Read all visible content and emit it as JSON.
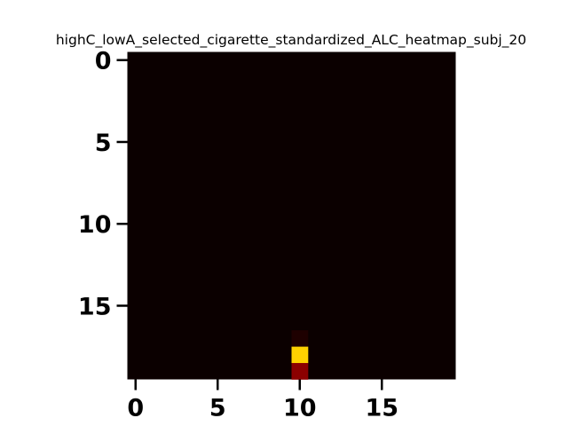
{
  "chart_data": {
    "type": "heatmap",
    "title": "highC_lowA_selected_cigarette_standardized_ALC_heatmap_subj_20",
    "xlabel": "",
    "ylabel": "",
    "rows": 20,
    "cols": 20,
    "x_ticks": [
      "0",
      "5",
      "10",
      "15"
    ],
    "y_ticks": [
      "0",
      "5",
      "10",
      "15"
    ],
    "colormap": "hot",
    "background_color": "#0b0000",
    "grid": false,
    "cells": [
      {
        "row": 17,
        "col": 10,
        "color": "#1e0000"
      },
      {
        "row": 18,
        "col": 10,
        "color": "#ffd200"
      },
      {
        "row": 19,
        "col": 10,
        "color": "#8c0000"
      }
    ]
  }
}
